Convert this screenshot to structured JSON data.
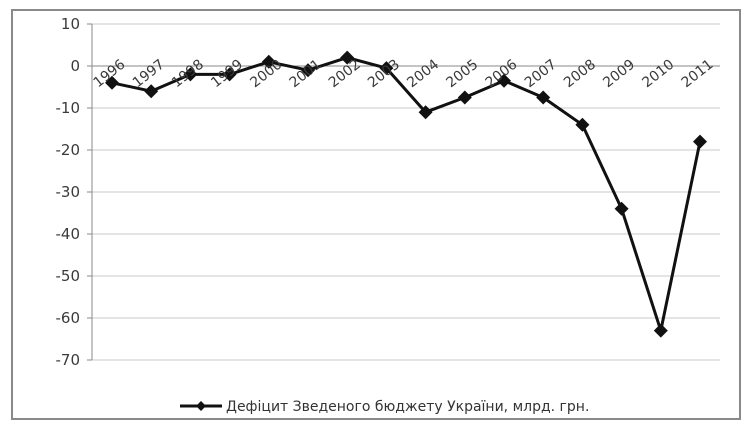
{
  "chart_data": {
    "type": "line",
    "title": "",
    "xlabel": "",
    "ylabel": "",
    "categories": [
      "1996",
      "1997",
      "1998",
      "1999",
      "2000",
      "2001",
      "2002",
      "2003",
      "2004",
      "2005",
      "2006",
      "2007",
      "2008",
      "2009",
      "2010",
      "2011"
    ],
    "category_labels": [
      "1996",
      "1997",
      "1998",
      "1999",
      "2000",
      "2001",
      "2002",
      "2003",
      "2004",
      "2005",
      "2006",
      "2007",
      "2008",
      "2009",
      "2010",
      "2011"
    ],
    "series": [
      {
        "name": "Дефіцит Зведеного бюджету України, млрд. грн.",
        "values": [
          -4,
          -6,
          -2,
          -2,
          1,
          -1,
          2,
          -0.5,
          -11,
          -7.5,
          -3.5,
          -7.5,
          -14,
          -34,
          -63,
          -18
        ]
      }
    ],
    "ylim": [
      -70,
      10
    ],
    "yticks": [
      10,
      0,
      -10,
      -20,
      -30,
      -40,
      -50,
      -60,
      -70
    ],
    "grid": true,
    "legend": "bottom",
    "colors": {
      "line": "#111111",
      "marker": "#111111",
      "grid": "#c8c8c8",
      "frame": "#8a8a8a"
    }
  }
}
